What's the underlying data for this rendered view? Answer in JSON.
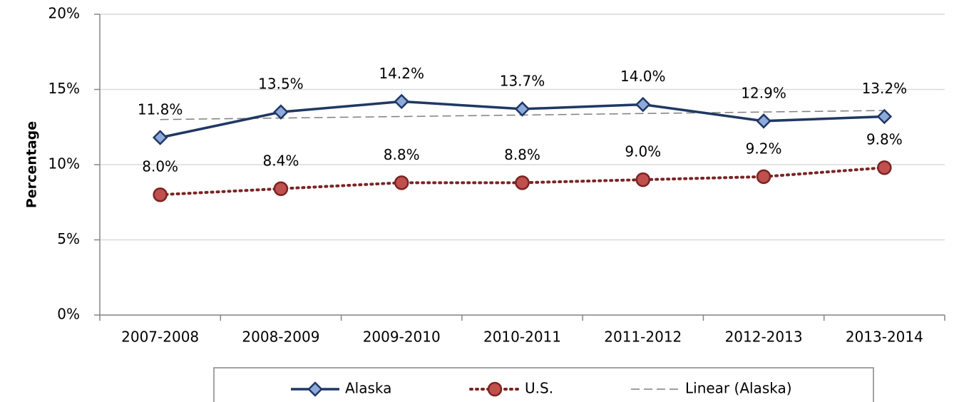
{
  "chart_data": {
    "type": "line",
    "y_label": "Percentage",
    "categories": [
      "2007-2008",
      "2008-2009",
      "2009-2010",
      "2010-2011",
      "2011-2012",
      "2012-2013",
      "2013-2014"
    ],
    "series": [
      {
        "name": "Alaska",
        "color": "#1f3864",
        "marker": "diamond",
        "marker_color": "#8eaadb",
        "dash": "solid",
        "values": [
          11.8,
          13.5,
          14.2,
          13.7,
          14.0,
          12.9,
          13.2
        ],
        "value_labels": [
          "11.8%",
          "13.5%",
          "14.2%",
          "13.7%",
          "14.0%",
          "12.9%",
          "13.2%"
        ]
      },
      {
        "name": "U.S.",
        "color": "#7b2323",
        "marker": "circle",
        "marker_color": "#c0504d",
        "dash": "dotted",
        "values": [
          8.0,
          8.4,
          8.8,
          8.8,
          9.0,
          9.2,
          9.8
        ],
        "value_labels": [
          "8.0%",
          "8.4%",
          "8.8%",
          "8.8%",
          "9.0%",
          "9.2%",
          "9.8%"
        ]
      },
      {
        "name": "Linear (Alaska)",
        "color": "#7f7f7f",
        "marker": "none",
        "dash": "dashed",
        "values": [
          13.0,
          13.1,
          13.2,
          13.3,
          13.4,
          13.5,
          13.6
        ]
      }
    ],
    "ylim": [
      0,
      20
    ],
    "yticks": [
      {
        "value": 0,
        "label": "0%"
      },
      {
        "value": 5,
        "label": "5%"
      },
      {
        "value": 10,
        "label": "10%"
      },
      {
        "value": 15,
        "label": "15%"
      },
      {
        "value": 20,
        "label": "20%"
      }
    ],
    "grid": true,
    "legend": "bottom"
  }
}
